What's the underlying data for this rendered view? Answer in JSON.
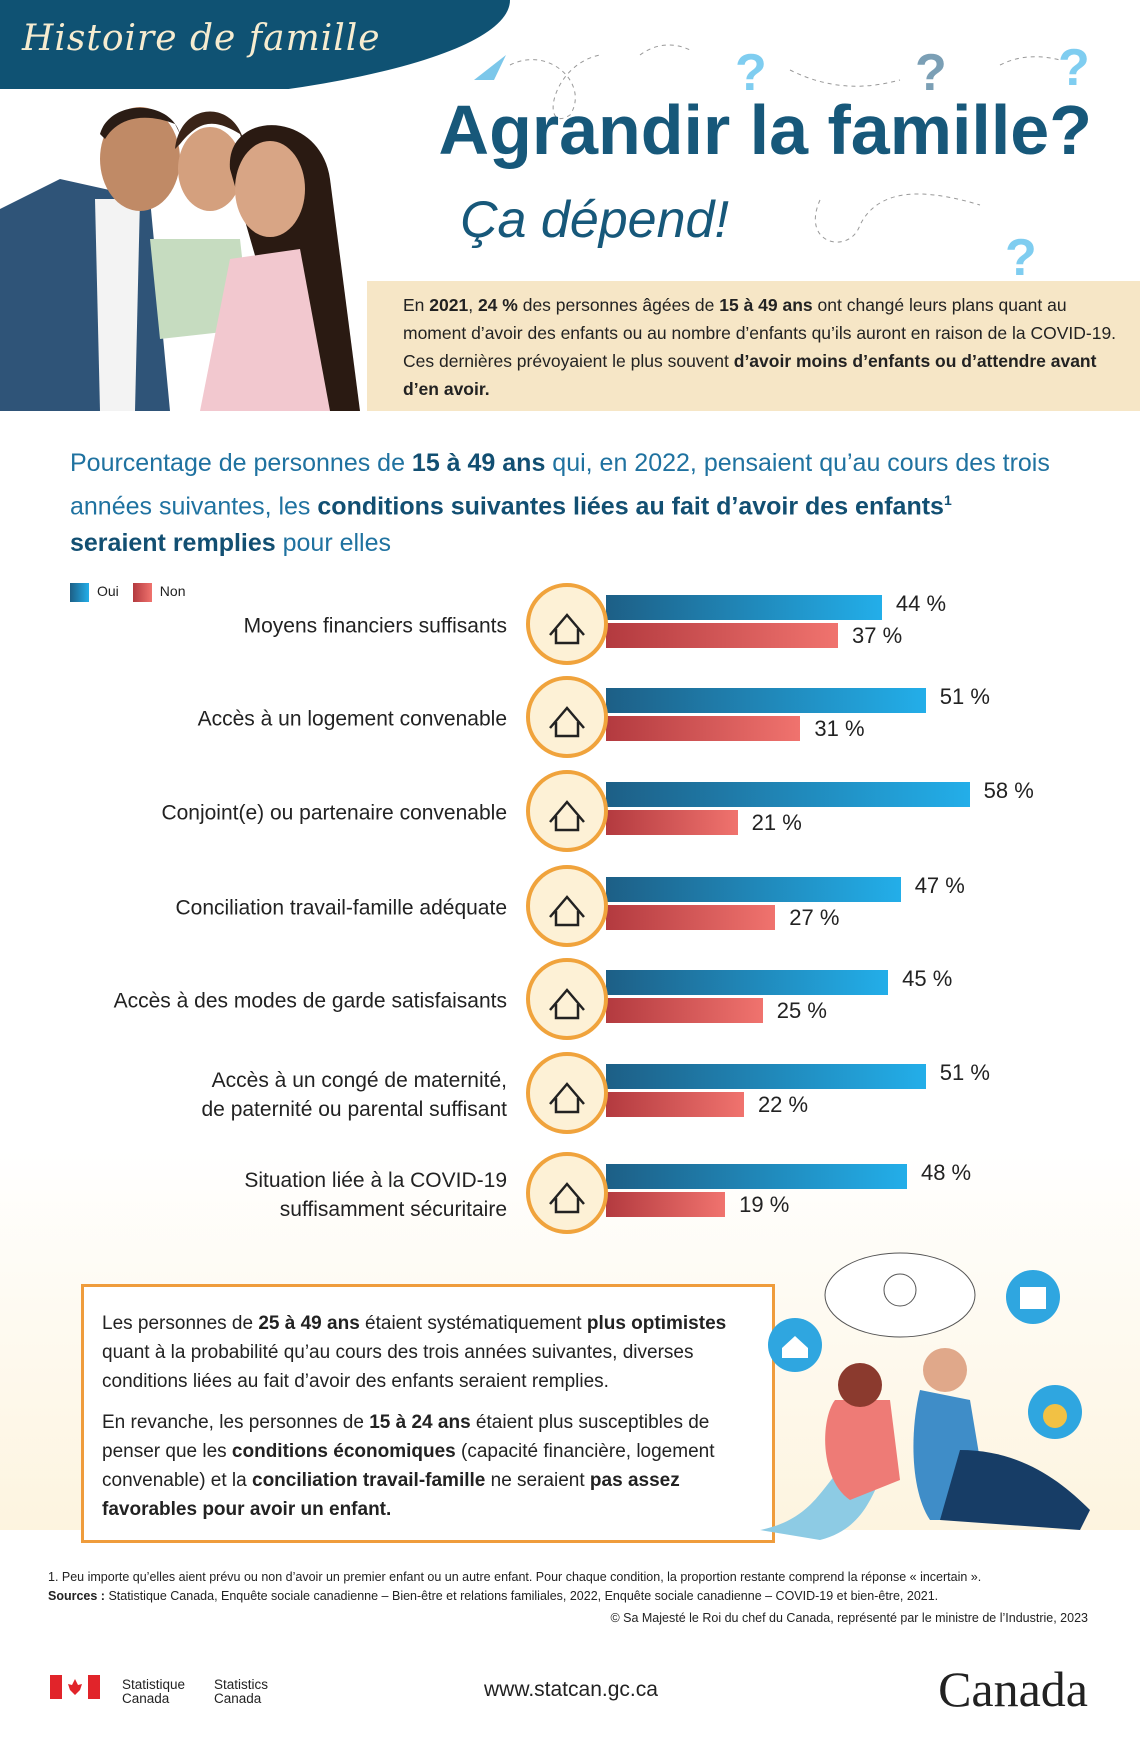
{
  "header": {
    "series": "Histoire de famille",
    "title": "Agrandir la famille?",
    "subtitle": "Ça dépend!"
  },
  "intro": {
    "p1": "En ",
    "y": "2021",
    ", ": ", ",
    "pct": "24 %",
    "p2": " des personnes âgées de ",
    "age": "15 à 49 ans",
    "p3": " ont changé leurs plans quant au moment d’avoir des enfants ou au nombre d’enfants qu’ils auront en raison de la COVID-19. Ces dernières prévoyaient le plus souvent ",
    "bold": "d’avoir moins d’enfants ou d’attendre avant d’en avoir."
  },
  "heading": {
    "a": "Pourcentage de personnes de ",
    "b": "15 à 49 ans",
    "c": " qui, en 2022, pensaient qu’au cours des trois années suivantes, les ",
    "d": "conditions suivantes liées au fait d’avoir des enfants",
    "sup": "1",
    "e": "seraient remplies",
    "f": " pour elles"
  },
  "colors": {
    "oui": "#1e8fc8",
    "non": "#e0625f",
    "accent": "#17587a"
  },
  "chart_data": {
    "type": "bar",
    "orientation": "horizontal",
    "categories": [
      "Moyens financiers suffisants",
      "Accès à un logement convenable",
      "Conjoint(e) ou partenaire convenable",
      "Conciliation travail-famille adéquate",
      "Accès à des modes de garde satisfaisants",
      "Accès à un congé de maternité, de paternité ou parental suffisant",
      "Situation liée à la COVID-19 suffisamment sécuritaire"
    ],
    "label_lines": [
      [
        "Moyens financiers suffisants"
      ],
      [
        "Accès à un logement convenable"
      ],
      [
        "Conjoint(e) ou partenaire convenable"
      ],
      [
        "Conciliation travail-famille adéquate"
      ],
      [
        "Accès à des modes de garde satisfaisants"
      ],
      [
        "Accès à un congé de maternité,",
        "de paternité ou parental suffisant"
      ],
      [
        "Situation liée à la COVID-19",
        "suffisamment sécuritaire"
      ]
    ],
    "icons": [
      "money-hand-icon",
      "house-icon",
      "couple-icon",
      "work-family-icon",
      "daycare-icon",
      "parent-stroller-icon",
      "covid-curve-icon"
    ],
    "series": [
      {
        "name": "Oui",
        "values": [
          44,
          51,
          58,
          47,
          45,
          51,
          48
        ]
      },
      {
        "name": "Non",
        "values": [
          37,
          31,
          21,
          27,
          25,
          22,
          19
        ]
      }
    ],
    "unit": "%",
    "legend": "top-left"
  },
  "box": {
    "a": "Les personnes de ",
    "b": "25 à 49 ans",
    "c": " étaient systématiquement ",
    "d": "plus optimistes",
    "e": " quant à la probabilité qu’au cours des trois années suivantes, diverses conditions liées au fait d’avoir des enfants seraient remplies.",
    "f": "En revanche, les personnes de ",
    "g": "15 à 24 ans",
    "h": " étaient plus susceptibles de penser que les ",
    "i": "conditions économiques",
    "j": " (capacité financière, logement convenable) et la ",
    "k": "conciliation travail-famille",
    "l": " ne seraient ",
    "m": "pas assez favorables pour avoir un enfant."
  },
  "footer": {
    "note": "1. Peu importe qu’elles aient prévu ou non d’avoir un premier enfant ou un autre enfant. Pour chaque condition, la proportion restante comprend la réponse « incertain ».",
    "src_label": "Sources :",
    "src": " Statistique Canada, Enquête sociale canadienne – Bien-être et relations familiales, 2022, Enquête sociale canadienne – COVID-19 et bien-être, 2021.",
    "copyright": "© Sa Majesté le Roi du chef du Canada, représenté par le ministre de l’Industrie, 2023",
    "stat_fr": [
      "Statistique",
      "Canada"
    ],
    "stat_en": [
      "Statistics",
      "Canada"
    ],
    "url": "www.statcan.gc.ca",
    "wordmark": "Canada"
  }
}
